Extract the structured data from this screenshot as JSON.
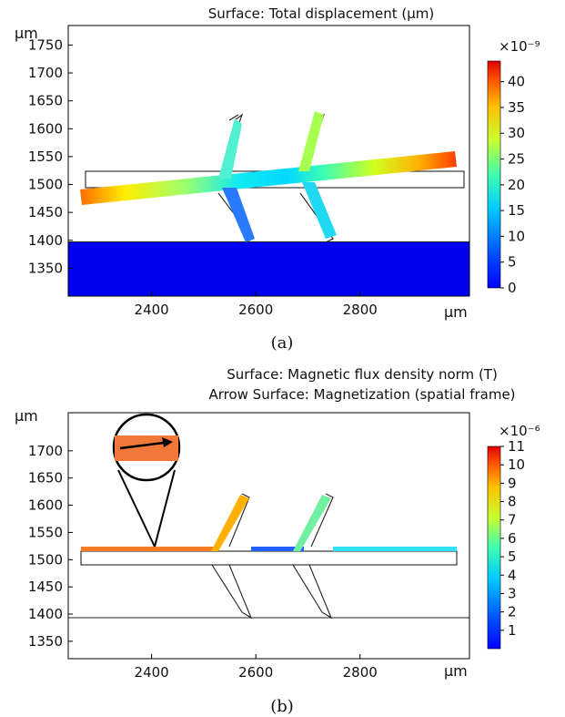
{
  "chart_data": [
    {
      "type": "heatmap",
      "panel_label": "(a)",
      "title": "Surface: Total displacement (µm)",
      "xlabel": "",
      "ylabel": "",
      "x_unit_label": "µm",
      "y_unit_label": "µm",
      "xlim": [
        2240,
        3010
      ],
      "ylim": [
        1300,
        1785
      ],
      "x_ticks": [
        "2400",
        "2600",
        "2800"
      ],
      "y_ticks": [
        "1350",
        "1400",
        "1450",
        "1500",
        "1550",
        "1600",
        "1650",
        "1700",
        "1750"
      ],
      "colorbar": {
        "scale_label": "×10⁻⁹",
        "ticks": [
          "0",
          "5",
          "10",
          "15",
          "20",
          "25",
          "30",
          "35",
          "40"
        ],
        "range": [
          0,
          44
        ],
        "colormap": "jet"
      },
      "grid": false
    },
    {
      "type": "heatmap",
      "panel_label": "(b)",
      "title": "Surface: Magnetic flux density norm (T)",
      "subtitle": "Arrow Surface: Magnetization (spatial frame)",
      "xlabel": "",
      "ylabel": "",
      "x_unit_label": "µm",
      "y_unit_label": "µm",
      "xlim": [
        2240,
        3010
      ],
      "ylim": [
        1318,
        1770
      ],
      "x_ticks": [
        "2400",
        "2600",
        "2800"
      ],
      "y_ticks": [
        "1350",
        "1400",
        "1450",
        "1500",
        "1550",
        "1600",
        "1650",
        "1700"
      ],
      "colorbar": {
        "scale_label": "×10⁻⁶",
        "ticks": [
          "1",
          "2",
          "3",
          "4",
          "5",
          "6",
          "7",
          "8",
          "9",
          "10",
          "11"
        ],
        "range": [
          0,
          11
        ],
        "colormap": "jet"
      },
      "grid": false
    }
  ]
}
